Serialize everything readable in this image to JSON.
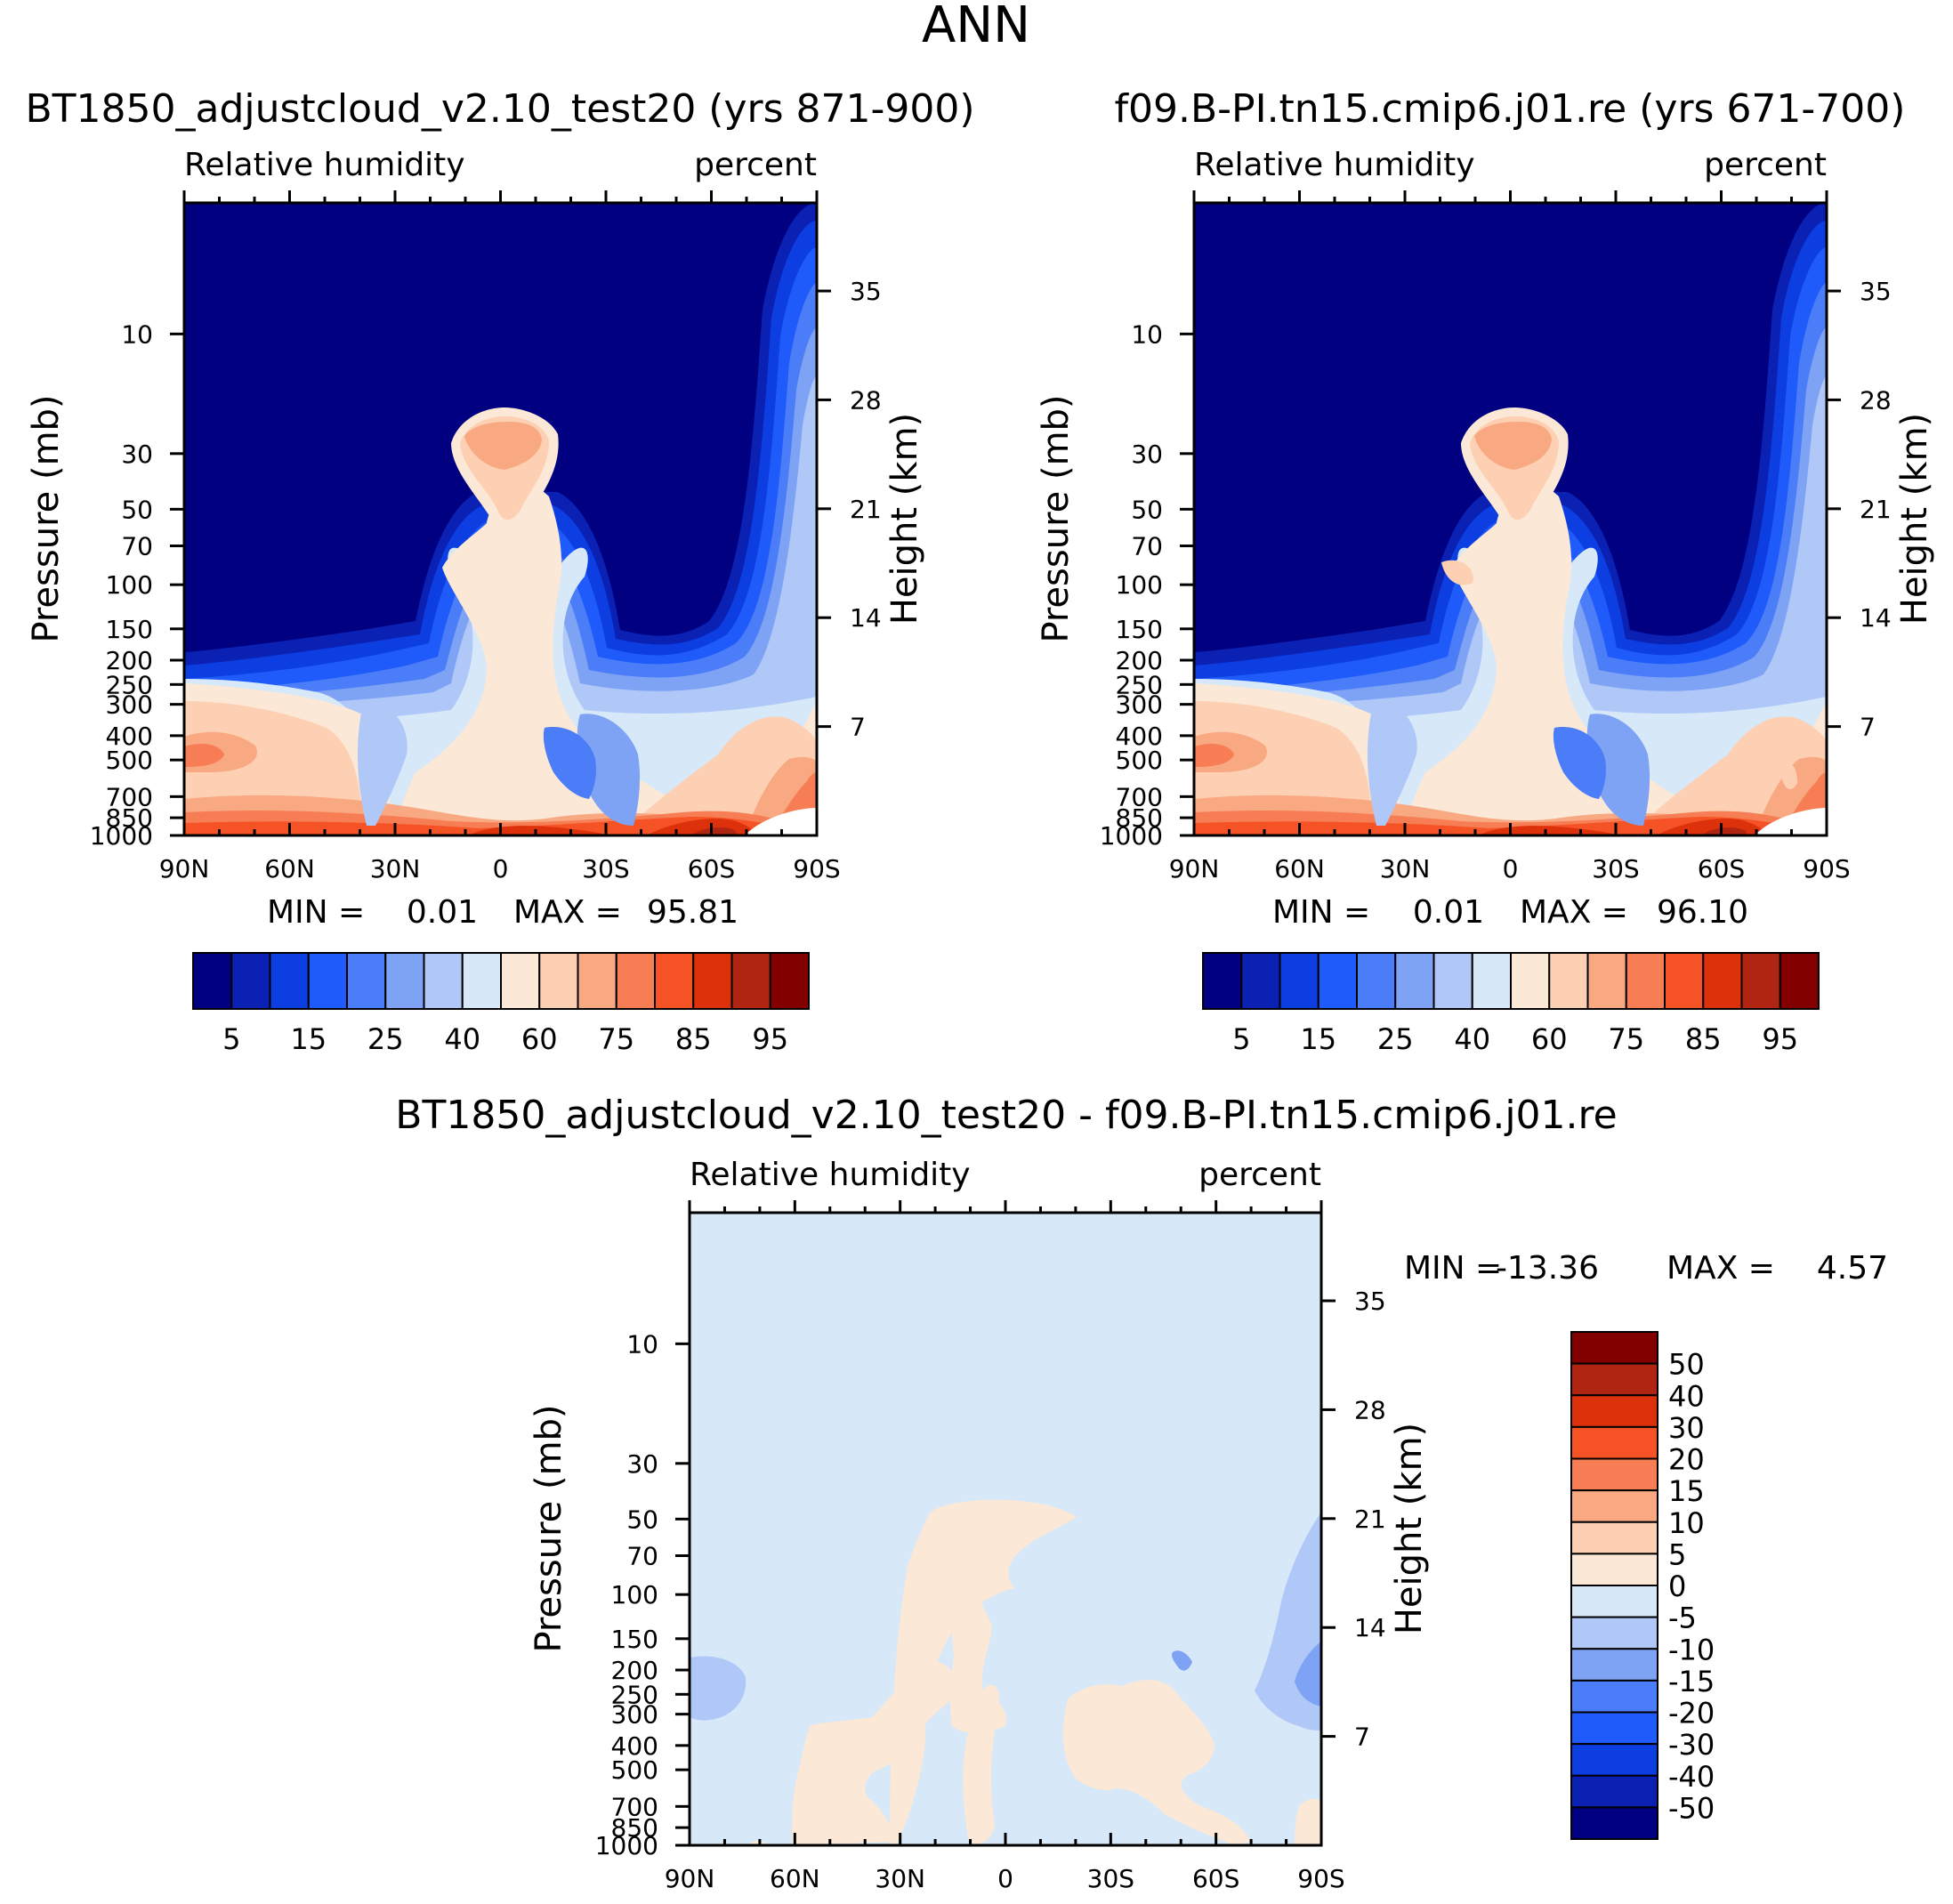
{
  "page_title": "ANN",
  "colors": {
    "model_scale": [
      "#000080",
      "#0a21b4",
      "#0c3ee2",
      "#1e5bfa",
      "#4a7df7",
      "#7ea2f4",
      "#afc8f8",
      "#d7e8f9",
      "#fce8d6",
      "#fdd0b4",
      "#f9a982",
      "#f77d55",
      "#f55225",
      "#dd310b",
      "#b02512",
      "#820000"
    ],
    "diff_scale": [
      "#000080",
      "#0a21b4",
      "#0c3ee2",
      "#1e5bfa",
      "#4a7df7",
      "#7ea2f4",
      "#afc8f8",
      "#d7e8f9",
      "#fce8d6",
      "#fdd0b4",
      "#f9a982",
      "#f77d55",
      "#f55225",
      "#dd310b",
      "#b02512",
      "#820000"
    ]
  },
  "chart_data": [
    {
      "type": "heatmap",
      "title": "BT1850_adjustcloud_v2.10_test20 (yrs 871-900)",
      "left_label": "Relative humidity",
      "right_label": "percent",
      "ylabel": "Pressure (mb)",
      "y2label": "Height (km)",
      "x_ticks": [
        "90N",
        "60N",
        "30N",
        "0",
        "30S",
        "60S",
        "90S"
      ],
      "y_ticks": [
        "10",
        "30",
        "50",
        "70",
        "100",
        "150",
        "200",
        "250",
        "300",
        "400",
        "500",
        "700",
        "850",
        "1000"
      ],
      "y2_ticks": [
        "35",
        "28",
        "21",
        "14",
        "7"
      ],
      "min_label": "MIN =",
      "min_value": "0.01",
      "max_label": "MAX =",
      "max_value": "95.81",
      "colorbar_levels": [
        "5",
        "15",
        "25",
        "40",
        "60",
        "75",
        "85",
        "95"
      ]
    },
    {
      "type": "heatmap",
      "title": "f09.B-PI.tn15.cmip6.j01.re (yrs 671-700)",
      "left_label": "Relative humidity",
      "right_label": "percent",
      "ylabel": "Pressure (mb)",
      "y2label": "Height (km)",
      "x_ticks": [
        "90N",
        "60N",
        "30N",
        "0",
        "30S",
        "60S",
        "90S"
      ],
      "y_ticks": [
        "10",
        "30",
        "50",
        "70",
        "100",
        "150",
        "200",
        "250",
        "300",
        "400",
        "500",
        "700",
        "850",
        "1000"
      ],
      "y2_ticks": [
        "35",
        "28",
        "21",
        "14",
        "7"
      ],
      "min_label": "MIN =",
      "min_value": "0.01",
      "max_label": "MAX =",
      "max_value": "96.10",
      "colorbar_levels": [
        "5",
        "15",
        "25",
        "40",
        "60",
        "75",
        "85",
        "95"
      ]
    },
    {
      "type": "heatmap",
      "title": "BT1850_adjustcloud_v2.10_test20 - f09.B-PI.tn15.cmip6.j01.re",
      "left_label": "Relative humidity",
      "right_label": "percent",
      "ylabel": "Pressure (mb)",
      "y2label": "Height (km)",
      "x_ticks": [
        "90N",
        "60N",
        "30N",
        "0",
        "30S",
        "60S",
        "90S"
      ],
      "y_ticks": [
        "10",
        "30",
        "50",
        "70",
        "100",
        "150",
        "200",
        "250",
        "300",
        "400",
        "500",
        "700",
        "850",
        "1000"
      ],
      "y2_ticks": [
        "35",
        "28",
        "21",
        "14",
        "7"
      ],
      "min_label": "MIN =",
      "min_value": "-13.36",
      "max_label": "MAX =",
      "max_value": "4.57",
      "colorbar_levels": [
        "50",
        "40",
        "30",
        "20",
        "15",
        "10",
        "5",
        "0",
        "-5",
        "-10",
        "-15",
        "-20",
        "-30",
        "-40",
        "-50"
      ]
    }
  ]
}
